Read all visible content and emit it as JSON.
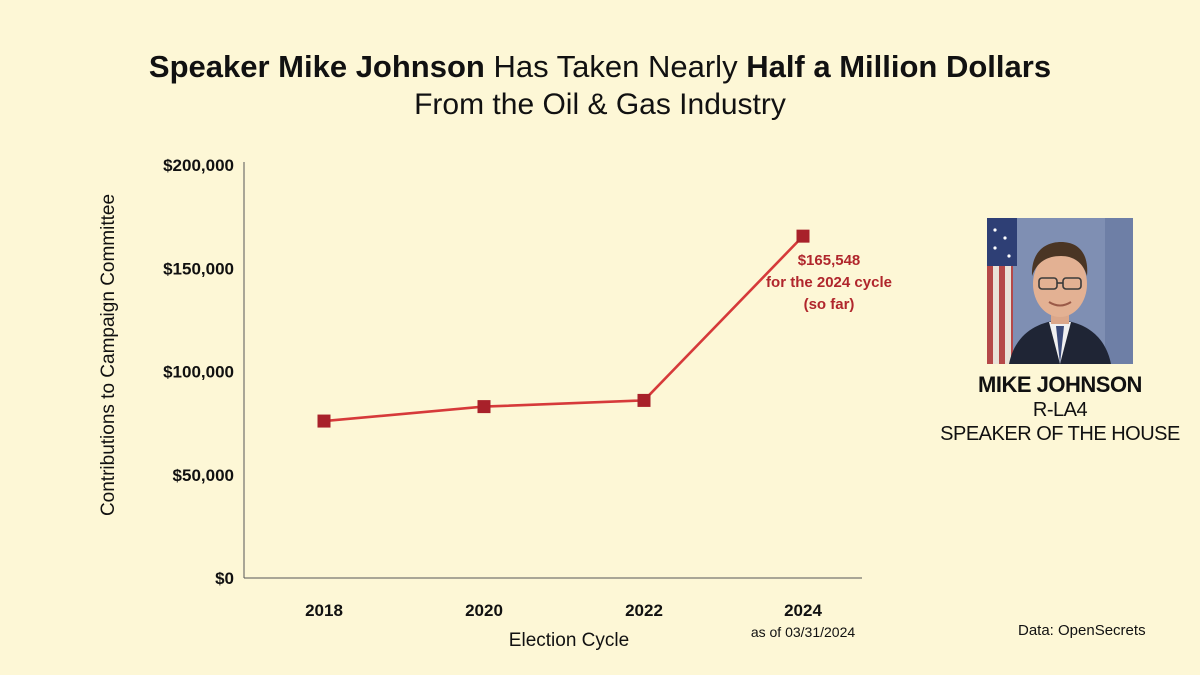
{
  "header": {
    "title_part1": "Speaker Mike Johnson",
    "title_part2": " Has Taken Nearly ",
    "title_part3": "Half  a Million Dollars",
    "title_line2": "From the Oil & Gas Industry"
  },
  "chart_data": {
    "type": "line",
    "xlabel": "Election Cycle",
    "ylabel": "Contributions to Campaign Committee",
    "categories": [
      "2018",
      "2020",
      "2022",
      "2024"
    ],
    "category_notes": [
      "",
      "",
      "",
      "as of 03/31/2024"
    ],
    "series": [
      {
        "values": [
          76000,
          83000,
          86000,
          165548
        ]
      }
    ],
    "ylim": [
      0,
      200000
    ],
    "yticks": [
      0,
      50000,
      100000,
      150000,
      200000
    ],
    "ytick_labels": [
      "$0",
      "$50,000",
      "$100,000",
      "$150,000",
      "$200,000"
    ],
    "grid": false,
    "annotation": {
      "lines": [
        "$165,548",
        "for the 2024 cycle",
        "(so far)"
      ]
    },
    "colors": {
      "line": "#d63a3a",
      "marker": "#a8212a",
      "annotation": "#b0262c"
    }
  },
  "profile": {
    "name": "MIKE JOHNSON",
    "district": "R-LA4",
    "role": "SPEAKER OF THE HOUSE"
  },
  "source": {
    "text": "Data: OpenSecrets"
  }
}
